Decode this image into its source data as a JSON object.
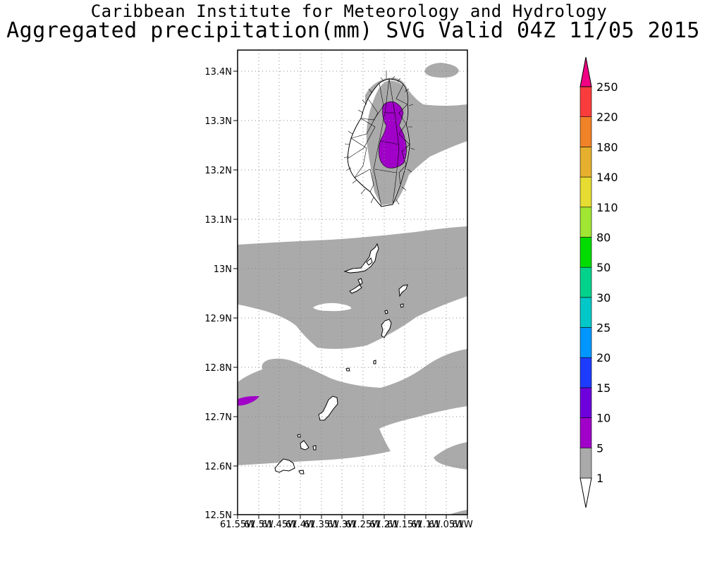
{
  "header": {
    "title": "Caribbean Institute for Meteorology and Hydrology",
    "subtitle": "Aggregated precipitation(mm) SVG Valid 04Z 11/05 2015"
  },
  "map": {
    "lat_labels": [
      "13.4N",
      "13.3N",
      "13.2N",
      "13.1N",
      "13N",
      "12.9N",
      "12.8N",
      "12.7N",
      "12.6N",
      "12.5N"
    ],
    "lon_labels": [
      "61.55W",
      "61.5W",
      "61.45W",
      "61.4W",
      "61.35W",
      "61.3W",
      "61.25W",
      "61.2W",
      "61.15W",
      "61.1W",
      "61.05W",
      "61W"
    ],
    "lat_range": [
      12.5,
      13.44
    ],
    "lon_range": [
      -61.55,
      -61.0
    ],
    "land_color": "#ffffff",
    "coast_color": "#000000",
    "grid": "dotted"
  },
  "colorbar": {
    "levels": [
      "1",
      "5",
      "10",
      "15",
      "20",
      "25",
      "30",
      "50",
      "80",
      "110",
      "140",
      "180",
      "220",
      "250"
    ],
    "colors": [
      "#ffffff",
      "#aaaaaa",
      "#a000c8",
      "#6e00dc",
      "#1e3cff",
      "#0096ff",
      "#00c8c8",
      "#00d28c",
      "#00dc00",
      "#a0e632",
      "#e6dc32",
      "#e6af2d",
      "#f08228",
      "#fa3c3c",
      "#f00082"
    ],
    "units": "mm"
  }
}
